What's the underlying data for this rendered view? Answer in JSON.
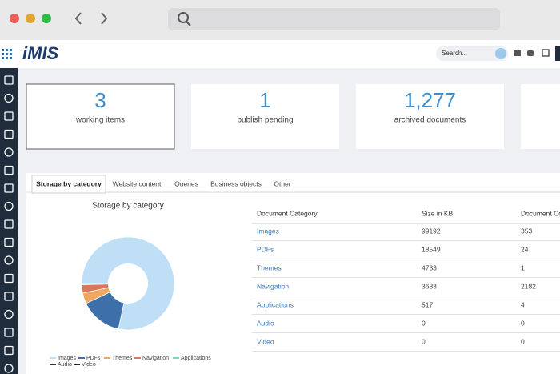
{
  "header": {
    "logo": "iMIS",
    "search_placeholder": "Search..."
  },
  "cards": [
    {
      "value": "3",
      "label": "working items"
    },
    {
      "value": "1",
      "label": "publish pending"
    },
    {
      "value": "1,277",
      "label": "archived documents"
    }
  ],
  "tabs": [
    "Storage by category",
    "Website content",
    "Queries",
    "Business objects",
    "Other"
  ],
  "chart": {
    "title": "Storage by category",
    "colors": [
      "#bfdff7",
      "#3d6fa8",
      "#f0a860",
      "#d9785a",
      "#7fd3c2",
      "#333333",
      "#222222"
    ]
  },
  "table": {
    "columns": [
      "Document Category",
      "Size in KB",
      "Document Count"
    ],
    "rows": [
      [
        "Images",
        99192,
        353
      ],
      [
        "PDFs",
        18549,
        24
      ],
      [
        "Themes",
        4733,
        1
      ],
      [
        "Navigation",
        3683,
        2182
      ],
      [
        "Applications",
        517,
        4
      ],
      [
        "Audio",
        0,
        0
      ],
      [
        "Video",
        0,
        0
      ]
    ]
  }
}
